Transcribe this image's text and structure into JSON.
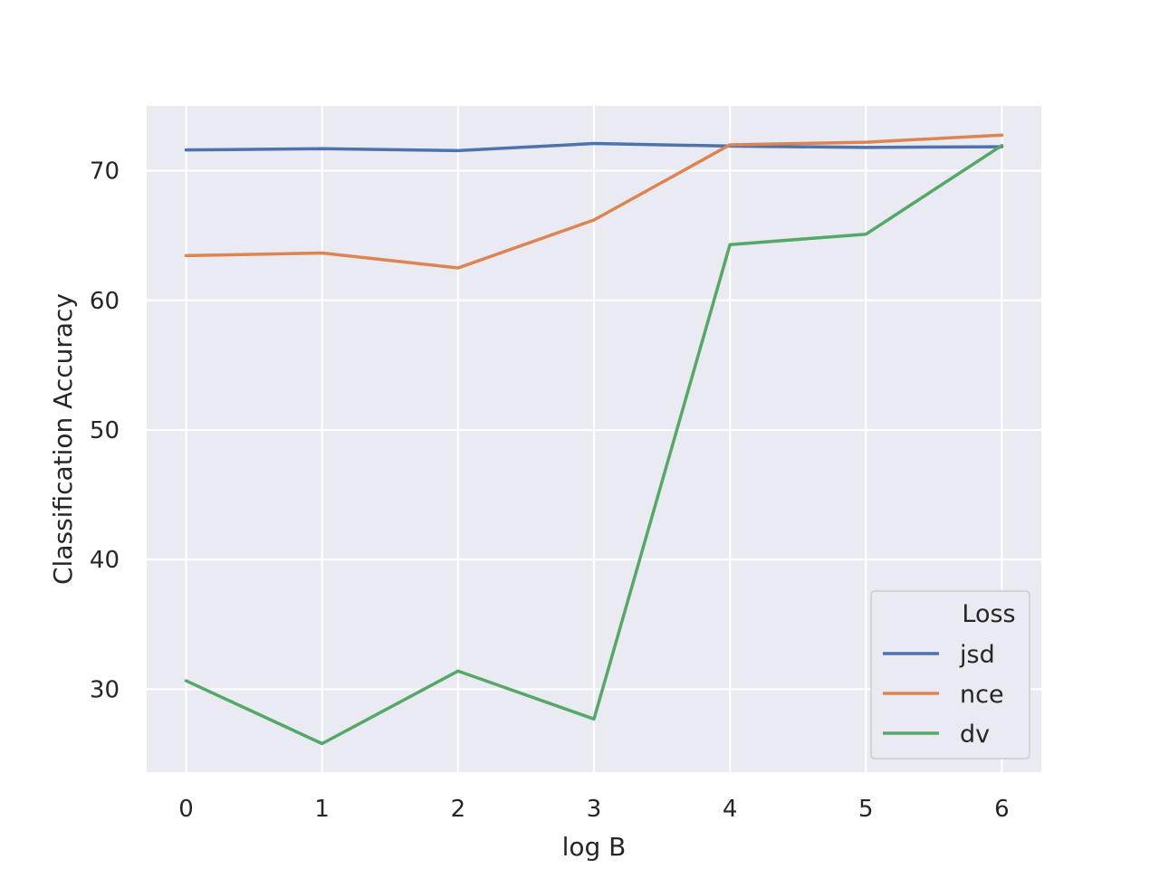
{
  "chart_data": {
    "type": "line",
    "title": "",
    "xlabel": "log B",
    "ylabel": "Classification Accuracy",
    "x": [
      0,
      1,
      2,
      3,
      4,
      5,
      6
    ],
    "xticks": [
      "0",
      "1",
      "2",
      "3",
      "4",
      "5",
      "6"
    ],
    "yticks": [
      "30",
      "40",
      "50",
      "60",
      "70"
    ],
    "xlim": [
      -0.29,
      6.29
    ],
    "ylim": [
      23.6,
      75.0
    ],
    "grid": true,
    "legend": {
      "title": "Loss",
      "placement": "lower-right"
    },
    "series": [
      {
        "name": "jsd",
        "color": "#4c72b0",
        "values": [
          71.6,
          71.7,
          71.55,
          72.1,
          71.9,
          71.8,
          71.85
        ]
      },
      {
        "name": "nce",
        "color": "#dd8452",
        "values": [
          63.45,
          63.65,
          62.5,
          66.2,
          72.0,
          72.2,
          72.75
        ]
      },
      {
        "name": "dv",
        "color": "#55a868",
        "values": [
          30.65,
          25.8,
          31.4,
          27.7,
          64.3,
          65.1,
          71.95
        ]
      }
    ]
  },
  "colors": {
    "plot_background": "#eaeaf2",
    "grid": "#ffffff",
    "text": "#262626"
  }
}
